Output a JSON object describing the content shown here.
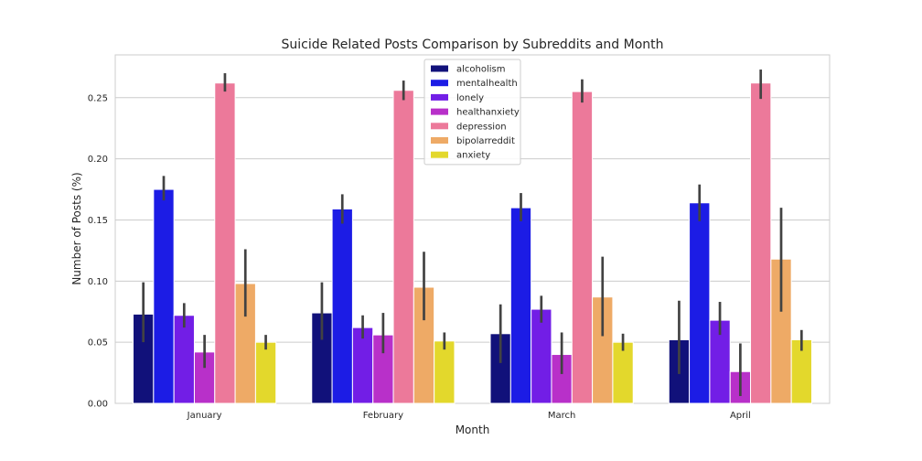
{
  "chart_data": {
    "type": "bar",
    "title": "Suicide Related Posts Comparison by Subreddits and Month",
    "xlabel": "Month",
    "ylabel": "Number of Posts (%)",
    "categories": [
      "January",
      "February",
      "March",
      "April"
    ],
    "ylim": [
      0,
      0.285
    ],
    "yticks": [
      0.0,
      0.05,
      0.1,
      0.15,
      0.2,
      0.25
    ],
    "ytick_labels": [
      "0.00",
      "0.05",
      "0.10",
      "0.15",
      "0.20",
      "0.25"
    ],
    "grid": "horizontal",
    "legend_position": "top-center",
    "series": [
      {
        "name": "alcoholism",
        "color": "#11117a",
        "values": [
          0.073,
          0.074,
          0.057,
          0.052
        ],
        "err_low": [
          0.05,
          0.052,
          0.033,
          0.024
        ],
        "err_high": [
          0.099,
          0.099,
          0.081,
          0.084
        ]
      },
      {
        "name": "mentalhealth",
        "color": "#1c1ce5",
        "values": [
          0.175,
          0.159,
          0.16,
          0.164
        ],
        "err_low": [
          0.166,
          0.147,
          0.149,
          0.149
        ],
        "err_high": [
          0.186,
          0.171,
          0.172,
          0.179
        ]
      },
      {
        "name": "lonely",
        "color": "#721ee6",
        "values": [
          0.072,
          0.062,
          0.077,
          0.068
        ],
        "err_low": [
          0.062,
          0.053,
          0.066,
          0.056
        ],
        "err_high": [
          0.082,
          0.072,
          0.088,
          0.083
        ]
      },
      {
        "name": "healthanxiety",
        "color": "#b830c9",
        "values": [
          0.042,
          0.056,
          0.04,
          0.026
        ],
        "err_low": [
          0.029,
          0.041,
          0.024,
          0.006
        ],
        "err_high": [
          0.056,
          0.074,
          0.058,
          0.049
        ]
      },
      {
        "name": "depression",
        "color": "#ec799a",
        "values": [
          0.262,
          0.256,
          0.255,
          0.262
        ],
        "err_low": [
          0.255,
          0.248,
          0.246,
          0.249
        ],
        "err_high": [
          0.27,
          0.264,
          0.265,
          0.273
        ]
      },
      {
        "name": "bipolarreddit",
        "color": "#eeaa66",
        "values": [
          0.098,
          0.095,
          0.087,
          0.118
        ],
        "err_low": [
          0.071,
          0.068,
          0.055,
          0.075
        ],
        "err_high": [
          0.126,
          0.124,
          0.12,
          0.16
        ]
      },
      {
        "name": "anxiety",
        "color": "#e3d82c",
        "values": [
          0.05,
          0.051,
          0.05,
          0.052
        ],
        "err_low": [
          0.044,
          0.044,
          0.043,
          0.043
        ],
        "err_high": [
          0.056,
          0.058,
          0.057,
          0.06
        ]
      }
    ]
  }
}
